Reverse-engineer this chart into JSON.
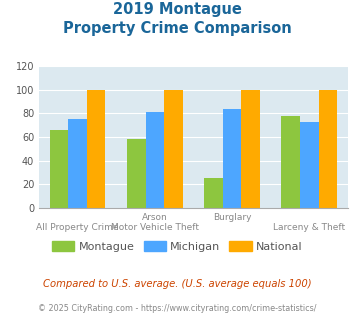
{
  "title_line1": "2019 Montague",
  "title_line2": "Property Crime Comparison",
  "cat_labels_row1": [
    "",
    "Arson",
    "Burglary",
    ""
  ],
  "cat_labels_row2": [
    "All Property Crime",
    "Motor Vehicle Theft",
    "",
    "Larceny & Theft"
  ],
  "montague": [
    66,
    58,
    25,
    78
  ],
  "michigan": [
    75,
    81,
    84,
    73
  ],
  "national": [
    100,
    100,
    100,
    100
  ],
  "bar_color_montague": "#8dc63f",
  "bar_color_michigan": "#4da6ff",
  "bar_color_national": "#ffaa00",
  "bg_color": "#dce9f0",
  "ylim": [
    0,
    120
  ],
  "yticks": [
    0,
    20,
    40,
    60,
    80,
    100,
    120
  ],
  "footnote1": "Compared to U.S. average. (U.S. average equals 100)",
  "footnote2": "© 2025 CityRating.com - https://www.cityrating.com/crime-statistics/",
  "legend_labels": [
    "Montague",
    "Michigan",
    "National"
  ],
  "title_color": "#1a6699",
  "label_color": "#888888",
  "footnote1_color": "#cc4400",
  "footnote2_color": "#888888"
}
